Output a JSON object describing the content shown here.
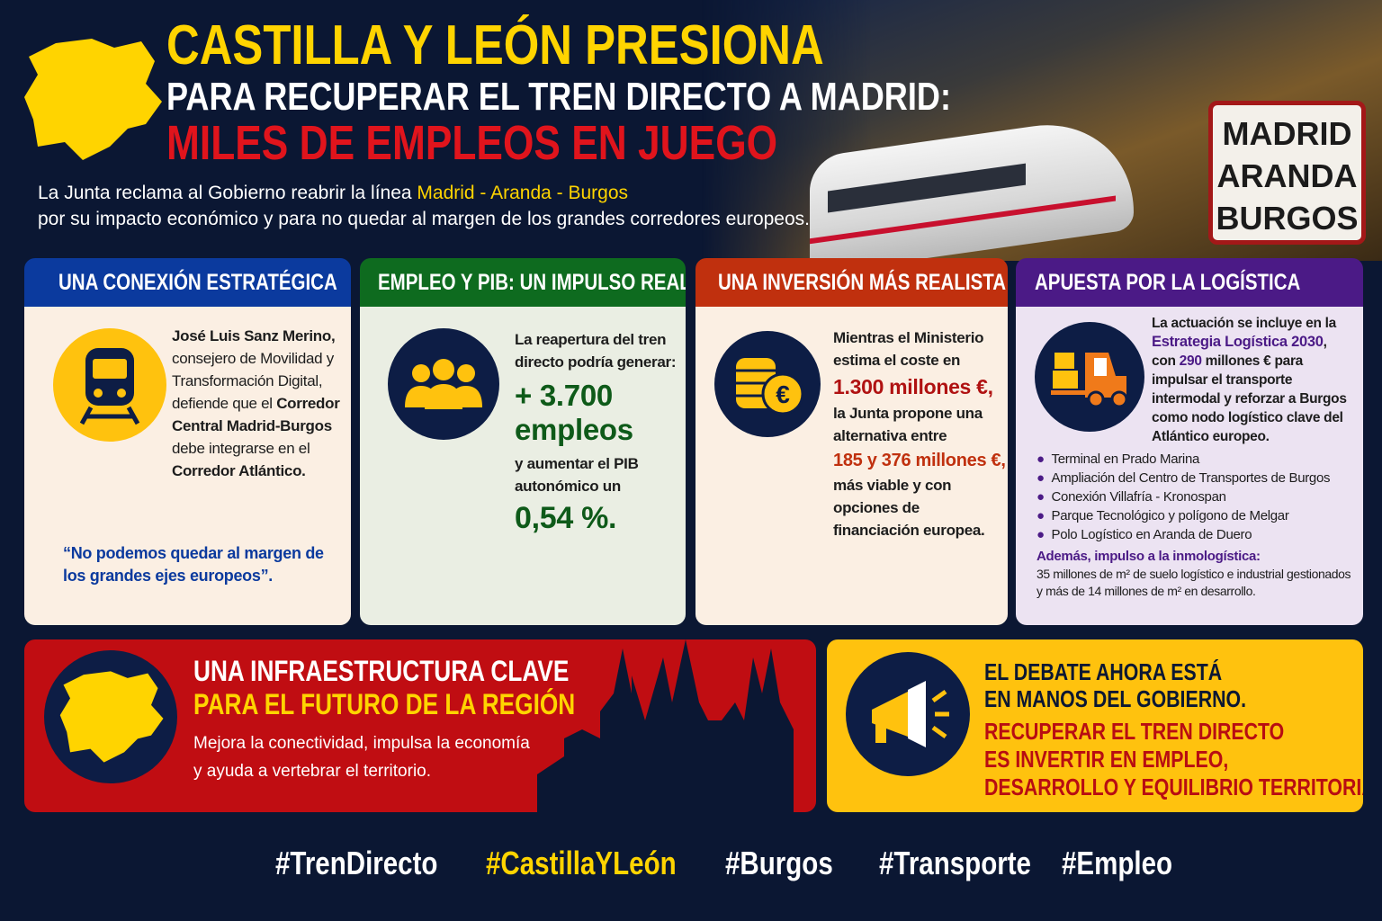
{
  "header": {
    "title_line1": "CASTILLA Y LEÓN PRESIONA",
    "title_line2": "PARA RECUPERAR EL TREN DIRECTO A MADRID:",
    "title_line3": "MILES DE EMPLEOS EN JUEGO",
    "subtitle_pre": "La Junta reclama al Gobierno reabrir la línea ",
    "subtitle_highlight": "Madrid - Aranda - Burgos",
    "subtitle_post": "por su impacto económico y para no quedar al margen de los grandes corredores europeos.",
    "sign": [
      "MADRID",
      "ARANDA",
      "BURGOS"
    ]
  },
  "cards": [
    {
      "title": "UNA CONEXIÓN ESTRATÉGICA",
      "color": "#0b3a9e",
      "bg": "#fbefe3",
      "icon": "train-icon",
      "text_a": "José Luis Sanz Merino,",
      "text_b": "consejero de Movilidad y Transformación Digital, defiende que el ",
      "text_c": "Corredor Central Madrid-Burgos",
      "text_d": " debe integrarse en el ",
      "text_e": "Corredor Atlántico.",
      "quote": "“No podemos quedar al margen de los grandes ejes europeos”."
    },
    {
      "title": "EMPLEO Y PIB: UN IMPULSO REAL",
      "color": "#0e6b1f",
      "bg": "#eaeee3",
      "icon": "people-icon",
      "text_a": "La reapertura del tren directo podría generar:",
      "figure_a": "+ 3.700 empleos",
      "text_b": "y aumentar el PIB autonómico un",
      "figure_b": "0,54 %."
    },
    {
      "title": "UNA INVERSIÓN MÁS REALISTA",
      "color": "#c0300e",
      "bg": "#fbefe3",
      "icon": "coins-euro-icon",
      "text_a": "Mientras el Ministerio estima el coste en",
      "figure_a": "1.300 millones €,",
      "text_b": "la Junta propone una alternativa entre",
      "figure_b": "185 y 376 millones €,",
      "text_c": "más viable y con opciones de financiación europea."
    },
    {
      "title": "APUESTA POR LA LOGÍSTICA",
      "color": "#4b1a86",
      "bg": "#ece3f2",
      "icon": "forklift-icon",
      "text_a": "La actuación se incluye en la",
      "text_b": "Estrategia Logística 2030",
      "text_c": ",",
      "text_d": "con ",
      "text_e": "290",
      "text_f": " millones € para impulsar el transporte intermodal y reforzar a Burgos como nodo logístico clave del Atlántico europeo.",
      "bullets": [
        "Terminal en Prado Marina",
        "Ampliación del Centro de Transportes de Burgos",
        "Conexión Villafría - Kronospan",
        "Parque Tecnológico y polígono de Melgar",
        "Polo Logístico en Aranda de Duero"
      ],
      "extra_title": "Además, impulso a la inmologística:",
      "extra_text": "35 millones de m² de suelo logístico e industrial gestionados y más de 14 millones de m² en desarrollo."
    }
  ],
  "banner_left": {
    "title1": "UNA INFRAESTRUCTURA CLAVE",
    "title2": "PARA EL FUTURO DE LA REGIÓN",
    "text": "Mejora la conectividad, impulsa la economía y ayuda a vertebrar el territorio.",
    "icon": "region-map-icon"
  },
  "banner_right": {
    "title1": "EL DEBATE AHORA ESTÁ",
    "title2": "EN MANOS DEL GOBIERNO.",
    "red1": "RECUPERAR EL TREN DIRECTO",
    "red2": "ES INVERTIR EN EMPLEO,",
    "red3": "DESARROLLO Y EQUILIBRIO TERRITORIAL.",
    "icon": "megaphone-icon"
  },
  "hashtags": [
    "#TrenDirecto",
    "#CastillaYLeón",
    "#Burgos",
    "#Transporte",
    "#Empleo"
  ],
  "colors": {
    "background": "#0b1733",
    "yellow": "#ffd400",
    "red": "#c00d12"
  }
}
